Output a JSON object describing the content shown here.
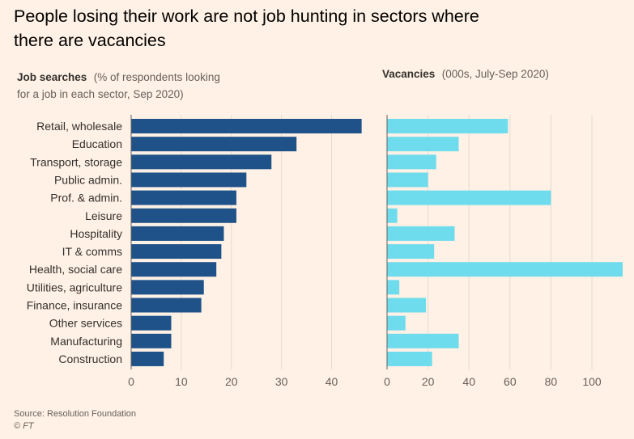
{
  "title_line1": "People losing their work are not job hunting in sectors where",
  "title_line2": "there are vacancies",
  "source": "Source: Resolution Foundation",
  "copyright": "© FT",
  "colors": {
    "background": "#fff1e5",
    "job_searches": "#1f5289",
    "vacancies": "#6fdcee"
  },
  "chart_data": [
    {
      "type": "bar",
      "orientation": "horizontal",
      "subtitle_bold": "Job searches",
      "subtitle_line1": "(% of respondents looking",
      "subtitle_line2": "for a job in each sector, Sep 2020)",
      "categories": [
        "Retail, wholesale",
        "Education",
        "Transport, storage",
        "Public admin.",
        "Prof. & admin.",
        "Leisure",
        "Hospitality",
        "IT & comms",
        "Health, social care",
        "Utilities, agriculture",
        "Finance, insurance",
        "Other services",
        "Manufacturing",
        "Construction"
      ],
      "values": [
        46,
        33,
        28,
        23,
        21,
        21,
        18.5,
        18,
        17,
        14.5,
        14,
        8,
        8,
        6.5
      ],
      "xlim": [
        0,
        48
      ],
      "ticks": [
        0,
        10,
        20,
        30,
        40
      ]
    },
    {
      "type": "bar",
      "orientation": "horizontal",
      "subtitle_bold": "Vacancies",
      "subtitle_rest": "(000s, July-Sep 2020)",
      "categories": [
        "Retail, wholesale",
        "Education",
        "Transport, storage",
        "Public admin.",
        "Prof. & admin.",
        "Leisure",
        "Hospitality",
        "IT & comms",
        "Health, social care",
        "Utilities, agriculture",
        "Finance, insurance",
        "Other services",
        "Manufacturing",
        "Construction"
      ],
      "values": [
        59,
        35,
        24,
        20,
        80,
        5,
        33,
        23,
        115,
        6,
        19,
        9,
        35,
        22
      ],
      "xlim": [
        0,
        115
      ],
      "ticks": [
        0,
        20,
        40,
        60,
        80,
        100
      ]
    }
  ]
}
